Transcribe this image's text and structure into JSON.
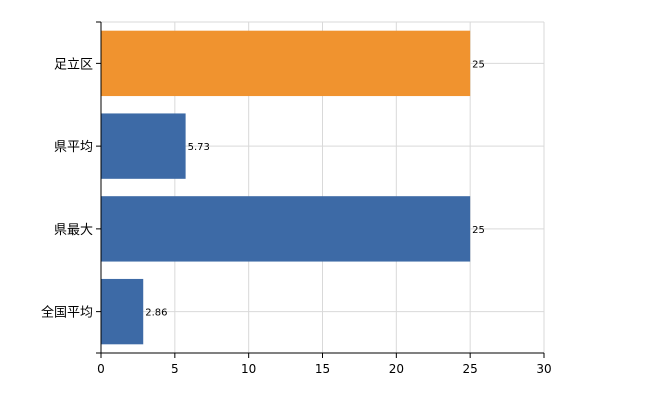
{
  "chart_data": {
    "type": "bar",
    "orientation": "horizontal",
    "categories": [
      "足立区",
      "県平均",
      "県最大",
      "全国平均"
    ],
    "values": [
      25,
      5.73,
      25,
      2.86
    ],
    "data_labels": [
      "25",
      "5.73",
      "25",
      "2.86"
    ],
    "bar_colors": [
      "#f0932f",
      "#3d6aa6",
      "#3d6aa6",
      "#3d6aa6"
    ],
    "xlim": [
      0,
      30
    ],
    "x_ticks": [
      0,
      5,
      10,
      15,
      20,
      25,
      30
    ],
    "title": "",
    "xlabel": "",
    "ylabel": "",
    "grid": true,
    "legend": "none"
  },
  "colors": {
    "grid": "#d9d9d9",
    "axis": "#000000",
    "highlight": "#f0932f",
    "default": "#3d6aa6"
  }
}
